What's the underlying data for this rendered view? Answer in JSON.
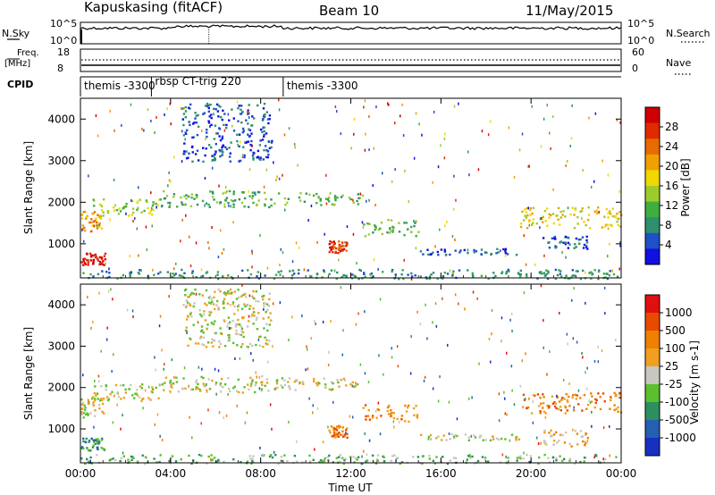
{
  "header": {
    "station": "Kapuskasing (fitACF)",
    "beam": "Beam 10",
    "date": "11/May/2015"
  },
  "top_panels": {
    "nsky_label": "N.Sky",
    "nsky_ticks": [
      "10^5",
      "10^0"
    ],
    "nsearch_label": "N.Search",
    "nsearch_ticks": [
      "10^5",
      "10^0"
    ],
    "freq_label": "Freq.",
    "freq_unit": "[MHz]",
    "freq_ticks": [
      "18",
      "8"
    ],
    "nave_label": "Nave",
    "nave_ticks": [
      "60",
      "0"
    ],
    "cpid_label": "CPID",
    "cpid_segments": [
      {
        "label": "themis -3300",
        "start_hour": 0.0,
        "end_hour": 3.15
      },
      {
        "label": "rbsp CT-trig 220",
        "start_hour": 3.15,
        "end_hour": 9.0
      },
      {
        "label": "themis -3300",
        "start_hour": 9.0,
        "end_hour": 24.0
      }
    ]
  },
  "chart_data": [
    {
      "type": "heatmap",
      "title": "",
      "xlabel": "",
      "ylabel": "Slant Range [km]",
      "xlim": [
        0,
        24
      ],
      "ylim": [
        180,
        4500
      ],
      "y_ticks": [
        1000,
        2000,
        3000,
        4000
      ],
      "colorbar": {
        "label": "Power [dB]",
        "ticks": [
          "4",
          "8",
          "12",
          "16",
          "20",
          "24",
          "28"
        ],
        "colors": [
          "#1010e0",
          "#1e50c8",
          "#2f8f6f",
          "#3fae3f",
          "#9ecb2c",
          "#f0d800",
          "#f0a000",
          "#e86a00",
          "#e02a00",
          "#d00000"
        ]
      },
      "bands": [
        {
          "t0": 0.0,
          "t1": 1.0,
          "r0": 1300,
          "r1": 1800,
          "level": 6
        },
        {
          "t0": 0.0,
          "t1": 1.1,
          "r0": 500,
          "r1": 800,
          "level": 9
        },
        {
          "t0": 0.5,
          "t1": 3.5,
          "r0": 1700,
          "r1": 2100,
          "level": 4
        },
        {
          "t0": 3.5,
          "t1": 9.0,
          "r0": 1900,
          "r1": 2300,
          "level": 3
        },
        {
          "t0": 9.0,
          "t1": 12.5,
          "r0": 1950,
          "r1": 2250,
          "level": 3
        },
        {
          "t0": 4.5,
          "t1": 8.5,
          "r0": 3000,
          "r1": 4400,
          "level": 1
        },
        {
          "t0": 11.0,
          "t1": 11.8,
          "r0": 800,
          "r1": 1100,
          "level": 8
        },
        {
          "t0": 12.5,
          "t1": 15.0,
          "r0": 1200,
          "r1": 1600,
          "level": 3
        },
        {
          "t0": 15.0,
          "t1": 19.5,
          "r0": 750,
          "r1": 900,
          "level": 1
        },
        {
          "t0": 19.5,
          "t1": 24.0,
          "r0": 1400,
          "r1": 1900,
          "level": 5
        },
        {
          "t0": 20.5,
          "t1": 22.5,
          "r0": 900,
          "r1": 1200,
          "level": 1
        },
        {
          "t0": 0.0,
          "t1": 24.0,
          "r0": 180,
          "r1": 400,
          "level": 2
        }
      ]
    },
    {
      "type": "heatmap",
      "title": "",
      "xlabel": "Time UT",
      "ylabel": "Slant Range [km]",
      "xlim": [
        0,
        24
      ],
      "ylim": [
        180,
        4500
      ],
      "x_ticks": [
        "00:00",
        "04:00",
        "08:00",
        "12:00",
        "16:00",
        "20:00",
        "00:00"
      ],
      "y_ticks": [
        1000,
        2000,
        3000,
        4000
      ],
      "colorbar": {
        "label": "Velocity [m s-1]",
        "ticks": [
          "1000",
          "500",
          "100",
          "25",
          "-25",
          "-100",
          "-500",
          "-1000"
        ],
        "colors": [
          "#1830c0",
          "#2560b0",
          "#2d8f5f",
          "#5cbf2c",
          "#c8c8c0",
          "#f0a020",
          "#f08000",
          "#e84a00",
          "#e01010"
        ]
      },
      "bands": [
        {
          "t0": 0.0,
          "t1": 1.0,
          "r0": 1300,
          "r1": 1800,
          "level": 4
        },
        {
          "t0": 0.0,
          "t1": 1.1,
          "r0": 500,
          "r1": 800,
          "level": 2
        },
        {
          "t0": 0.5,
          "t1": 3.5,
          "r0": 1700,
          "r1": 2100,
          "level": 4
        },
        {
          "t0": 3.5,
          "t1": 9.0,
          "r0": 1900,
          "r1": 2300,
          "level": 4
        },
        {
          "t0": 9.0,
          "t1": 12.5,
          "r0": 1950,
          "r1": 2250,
          "level": 4
        },
        {
          "t0": 4.5,
          "t1": 8.5,
          "r0": 3000,
          "r1": 4400,
          "level": 4
        },
        {
          "t0": 11.0,
          "t1": 11.8,
          "r0": 800,
          "r1": 1100,
          "level": 6
        },
        {
          "t0": 12.5,
          "t1": 15.0,
          "r0": 1200,
          "r1": 1600,
          "level": 6
        },
        {
          "t0": 15.0,
          "t1": 19.5,
          "r0": 750,
          "r1": 900,
          "level": 4
        },
        {
          "t0": 19.5,
          "t1": 24.0,
          "r0": 1400,
          "r1": 1900,
          "level": 6
        },
        {
          "t0": 20.5,
          "t1": 22.5,
          "r0": 600,
          "r1": 1000,
          "level": 5
        },
        {
          "t0": 0.0,
          "t1": 24.0,
          "r0": 180,
          "r1": 400,
          "level": 3
        }
      ]
    }
  ]
}
